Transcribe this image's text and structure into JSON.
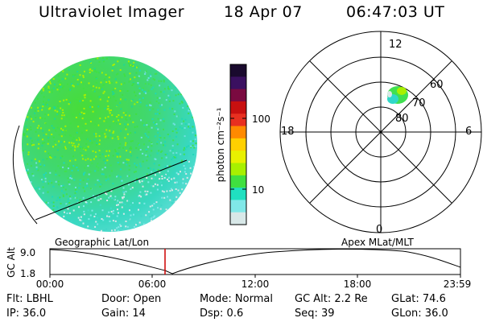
{
  "header": {
    "title": "Ultraviolet Imager",
    "date": "18 Apr 07",
    "time": "06:47:03 UT"
  },
  "colorbar": {
    "unit_label": "photon cm⁻²s⁻¹",
    "ticks": [
      "100",
      "10"
    ],
    "scale": "log",
    "colors_top_to_bottom": [
      "#1a0a2e",
      "#3a1060",
      "#7a0a40",
      "#c81010",
      "#e83020",
      "#ff8a00",
      "#ffd000",
      "#e8f000",
      "#a8f000",
      "#40e040",
      "#20e0c0",
      "#80e8e8",
      "#d8e8e8"
    ]
  },
  "polar_plot": {
    "mlt_labels": {
      "top": "12",
      "left": "18",
      "right": "6",
      "bottom": "0"
    },
    "lat_labels": [
      "60",
      "70",
      "80"
    ]
  },
  "timeline": {
    "left_caption": "Geographic Lat/Lon",
    "right_caption": "Apex MLat/MLT",
    "ylabel": "GC Alt",
    "ytick_top": "9.0",
    "ytick_bottom": "1.8",
    "xticks": [
      "00:00",
      "06:00",
      "12:00",
      "18:00",
      "23:59"
    ],
    "marker_color": "#cc0000"
  },
  "info": {
    "r1": [
      {
        "key": "flt",
        "text": "Flt: LBHL"
      },
      {
        "key": "door",
        "text": "Door: Open"
      },
      {
        "key": "mode",
        "text": "Mode: Normal"
      },
      {
        "key": "gcalt",
        "text": "GC Alt: 2.2 Re"
      },
      {
        "key": "glat",
        "text": "GLat:  74.6"
      }
    ],
    "r2": [
      {
        "key": "ip",
        "text": "IP: 36.0"
      },
      {
        "key": "gain",
        "text": "Gain: 14"
      },
      {
        "key": "dsp",
        "text": "Dsp:    0.6"
      },
      {
        "key": "seq",
        "text": "Seq: 39"
      },
      {
        "key": "glon",
        "text": "GLon:  36.0"
      }
    ]
  }
}
